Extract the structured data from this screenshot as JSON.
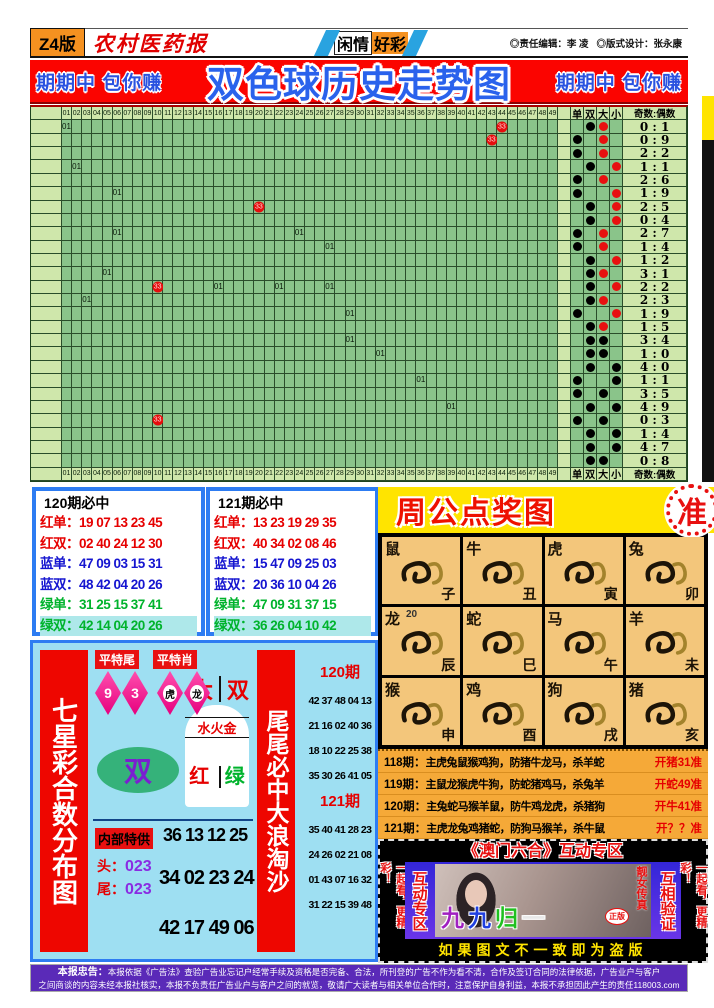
{
  "header": {
    "edition": "Z4版",
    "paper_name": "农村医药报",
    "center_left": "闲情",
    "center_right": "好彩",
    "editor": "◎责任编辑：李 凌",
    "designer": "◎版式设计：张永康"
  },
  "banner": {
    "left_slogan": "期期中 包你赚",
    "title": "双色球历史走势图",
    "right_slogan": "期期中 包你赚"
  },
  "colors": {
    "banner_red": "#fb0400",
    "title_blue": "#2a62ec",
    "grid_green": "#8ac48a",
    "grid_light": "#cfe7ab",
    "dot_red": "#e81010",
    "yellow": "#ffe400",
    "zodiac_orange": "#f3c67b",
    "sky_blue": "#9edff2",
    "purple": "#5a2ab8"
  },
  "trend": {
    "cols": 49,
    "side_headers": [
      "单",
      "双",
      "大",
      "小"
    ],
    "ratio_header": "奇数:偶数",
    "rows": [
      {
        "p": "双",
        "s": "大",
        "sc": "red",
        "r": "0:1"
      },
      {
        "p": "单",
        "s": "大",
        "sc": "red",
        "r": "0:9"
      },
      {
        "p": "单",
        "s": "大",
        "sc": "red",
        "r": "2:2"
      },
      {
        "p": "双",
        "s": "小",
        "sc": "red",
        "r": "1:1"
      },
      {
        "p": "单",
        "s": "大",
        "sc": "red",
        "r": "2:6"
      },
      {
        "p": "单",
        "s": "小",
        "sc": "red",
        "r": "1:9"
      },
      {
        "p": "双",
        "s": "小",
        "sc": "red",
        "r": "2:5"
      },
      {
        "p": "双",
        "s": "小",
        "sc": "red",
        "r": "0:4"
      },
      {
        "p": "单",
        "s": "大",
        "sc": "red",
        "r": "2:7"
      },
      {
        "p": "单",
        "s": "大",
        "sc": "red",
        "r": "1:4"
      },
      {
        "p": "双",
        "s": "小",
        "sc": "red",
        "r": "1:2"
      },
      {
        "p": "双",
        "s": "大",
        "sc": "red",
        "r": "3:1"
      },
      {
        "p": "双",
        "s": "小",
        "sc": "red",
        "r": "2:2"
      },
      {
        "p": "双",
        "s": "大",
        "sc": "red",
        "r": "2:3"
      },
      {
        "p": "单",
        "s": "小",
        "sc": "red",
        "r": "1:9"
      },
      {
        "p": "双",
        "s": "大",
        "sc": "red",
        "r": "1:5"
      },
      {
        "p": "双",
        "s": "大",
        "sc": "black",
        "r": "3:4"
      },
      {
        "p": "双",
        "s": "大",
        "sc": "black",
        "r": "1:0"
      },
      {
        "p": "双",
        "s": "小",
        "sc": "black",
        "r": "4:0"
      },
      {
        "p": "单",
        "s": "小",
        "sc": "black",
        "r": "1:1"
      },
      {
        "p": "单",
        "s": "大",
        "sc": "black",
        "r": "3:5"
      },
      {
        "p": "双",
        "s": "小",
        "sc": "black",
        "r": "4:9"
      },
      {
        "p": "单",
        "s": "大",
        "sc": "black",
        "r": "0:3"
      },
      {
        "p": "双",
        "s": "小",
        "sc": "black",
        "r": "1:4"
      },
      {
        "p": "双",
        "s": "小",
        "sc": "black",
        "r": "4:7"
      },
      {
        "p": "双",
        "s": "大",
        "sc": "black",
        "r": "0:8"
      }
    ],
    "markers": [
      {
        "row": 1,
        "col": 1,
        "label": "01",
        "circle": false
      },
      {
        "row": 1,
        "col": 44,
        "label": "33",
        "circle": true
      },
      {
        "row": 2,
        "col": 43,
        "label": "33",
        "circle": true
      },
      {
        "row": 4,
        "col": 2,
        "label": "01",
        "circle": false
      },
      {
        "row": 6,
        "col": 6,
        "label": "01",
        "circle": false
      },
      {
        "row": 7,
        "col": 20,
        "label": "33",
        "circle": true
      },
      {
        "row": 9,
        "col": 6,
        "label": "01",
        "circle": false
      },
      {
        "row": 9,
        "col": 24,
        "label": "01",
        "circle": false
      },
      {
        "row": 10,
        "col": 27,
        "label": "01",
        "circle": false
      },
      {
        "row": 12,
        "col": 5,
        "label": "01",
        "circle": false
      },
      {
        "row": 13,
        "col": 10,
        "label": "33",
        "circle": true
      },
      {
        "row": 13,
        "col": 16,
        "label": "01",
        "circle": false
      },
      {
        "row": 13,
        "col": 22,
        "label": "01",
        "circle": false
      },
      {
        "row": 13,
        "col": 27,
        "label": "01",
        "circle": false
      },
      {
        "row": 14,
        "col": 3,
        "label": "01",
        "circle": false
      },
      {
        "row": 15,
        "col": 29,
        "label": "01",
        "circle": false
      },
      {
        "row": 17,
        "col": 29,
        "label": "01",
        "circle": false
      },
      {
        "row": 18,
        "col": 32,
        "label": "01",
        "circle": false
      },
      {
        "row": 20,
        "col": 36,
        "label": "01",
        "circle": false
      },
      {
        "row": 22,
        "col": 39,
        "label": "01",
        "circle": false
      },
      {
        "row": 23,
        "col": 10,
        "label": "33",
        "circle": true
      }
    ]
  },
  "predictions": [
    {
      "title": "120期必中",
      "rows": [
        {
          "label": "红单：",
          "nums": "19 07 13 23 45",
          "color": "red",
          "hl": false
        },
        {
          "label": "红双：",
          "nums": "02 40 24 12 30",
          "color": "red",
          "hl": false
        },
        {
          "label": "蓝单：",
          "nums": "47 09 03 15 31",
          "color": "blue",
          "hl": false
        },
        {
          "label": "蓝双：",
          "nums": "48 42 04 20 26",
          "color": "blue",
          "hl": false
        },
        {
          "label": "绿单：",
          "nums": "31 25 15 37 41",
          "color": "green",
          "hl": false
        },
        {
          "label": "绿双：",
          "nums": "42 14 04 20 26",
          "color": "green",
          "hl": true
        }
      ]
    },
    {
      "title": "121期必中",
      "rows": [
        {
          "label": "红单：",
          "nums": "13 23 19 29 35",
          "color": "red",
          "hl": false
        },
        {
          "label": "红双：",
          "nums": "40 34 02 08 46",
          "color": "red",
          "hl": false
        },
        {
          "label": "蓝单：",
          "nums": "15 47 09 25 03",
          "color": "blue",
          "hl": false
        },
        {
          "label": "蓝双：",
          "nums": "20 36 10 04 26",
          "color": "blue",
          "hl": false
        },
        {
          "label": "绿单：",
          "nums": "47 09 31 37 15",
          "color": "green",
          "hl": false
        },
        {
          "label": "绿双：",
          "nums": "36 26 04 10 42",
          "color": "green",
          "hl": true
        }
      ]
    }
  ],
  "zhou": {
    "title": "周公点奖图",
    "badge": "准",
    "zodiac": [
      {
        "animal": "鼠",
        "branch": "子",
        "note": ""
      },
      {
        "animal": "牛",
        "branch": "丑",
        "note": ""
      },
      {
        "animal": "虎",
        "branch": "寅",
        "note": ""
      },
      {
        "animal": "兔",
        "branch": "卯",
        "note": ""
      },
      {
        "animal": "龙",
        "branch": "辰",
        "note": "20"
      },
      {
        "animal": "蛇",
        "branch": "巳",
        "note": ""
      },
      {
        "animal": "马",
        "branch": "午",
        "note": ""
      },
      {
        "animal": "羊",
        "branch": "未",
        "note": ""
      },
      {
        "animal": "猴",
        "branch": "申",
        "note": ""
      },
      {
        "animal": "鸡",
        "branch": "酉",
        "note": ""
      },
      {
        "animal": "狗",
        "branch": "戌",
        "note": ""
      },
      {
        "animal": "猪",
        "branch": "亥",
        "note": ""
      }
    ],
    "periods": [
      {
        "label": "118期：",
        "text": "主虎兔鼠猴鸡狗，防猪牛龙马，杀羊蛇",
        "result": "开猪31准"
      },
      {
        "label": "119期：",
        "text": "主鼠龙猴虎牛狗，防蛇猪鸡马，杀兔羊",
        "result": "开蛇49准"
      },
      {
        "label": "120期：",
        "text": "主兔蛇马猴羊鼠，防牛鸡龙虎，杀猪狗",
        "result": "开牛41准"
      },
      {
        "label": "121期：",
        "text": "主虎龙兔鸡猪蛇，防狗马猴羊，杀牛鼠",
        "result": "开？？准"
      }
    ]
  },
  "seven": {
    "banner": "七星彩合数分布图",
    "pt_tail": "平特尾",
    "pt_xiao": "平特肖",
    "diamonds": [
      {
        "text": "9",
        "style": "num"
      },
      {
        "text": "3",
        "style": "num"
      },
      {
        "text": "虎",
        "style": "zodiac"
      },
      {
        "text": "龙",
        "style": "zodiac"
      }
    ],
    "big": "大",
    "shuang": "双",
    "elements": "水火金",
    "red": "红",
    "green": "绿",
    "ellipse": "双",
    "special_label": "内部特供",
    "special_nums": "36 13 12 25",
    "head_label": "头：",
    "head_nums": "023",
    "tail_label": "尾：",
    "tail_nums": "023",
    "nums2": "34 02 23 24",
    "nums3": "42 17 49 06"
  },
  "tail": {
    "banner": "尾尾必中大浪淘沙",
    "groups": [
      {
        "label": "120期",
        "rows": [
          "42 37 48 04 13",
          "21 16 02 40 36",
          "18 10 22 25 38",
          "35 30 26 41 05"
        ]
      },
      {
        "label": "121期",
        "rows": [
          "35 40 41 28 23",
          "24 26 02 21 08",
          "01 43 07 16 32",
          "31 22 15 39 48"
        ]
      }
    ]
  },
  "macau": {
    "title": "《澳门六合》互动专区",
    "side_left": "一起看，更精彩！",
    "side_right": "一起看，更精彩！",
    "zone_left": "互动专区",
    "zone_right": "互相验证",
    "photo_chars": [
      {
        "ch": "九",
        "color": "#a020c0"
      },
      {
        "ch": "九",
        "color": "#2040e0"
      },
      {
        "ch": "归",
        "color": "#20c020"
      },
      {
        "ch": "一",
        "color": "#e8e8e8"
      }
    ],
    "photo_side": "靓女传真",
    "stamp": "正版",
    "bottom": "如果图文不一致即为盗版"
  },
  "disclaimer": {
    "label": "本报忠告：",
    "line1": "本报依据《广告法》查验广告业忘记户经常手续及资格是否完备、合法，所刊登的广告不作为看不清，合作及签订合同的法律依据，广告业户与客户",
    "line2": "之间商谈的内容未经本报社核实，本报不负责任广告业户与客户之间的就览，敬请广大读者与相关单位合作时，注意保护自身利益，本报不承担因此产生的责任118003.com"
  }
}
